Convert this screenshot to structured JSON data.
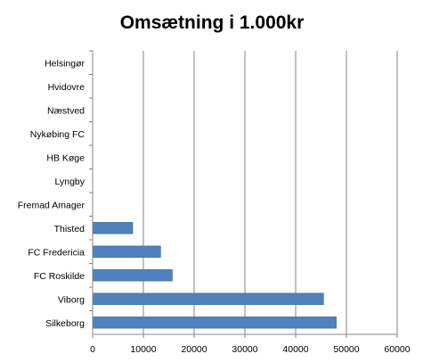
{
  "chart_data": {
    "type": "bar",
    "orientation": "horizontal",
    "title": "Omsætning i 1.000kr",
    "xlabel": "",
    "ylabel": "",
    "categories": [
      "Silkeborg",
      "Viborg",
      "FC Roskilde",
      "FC Fredericia",
      "Thisted",
      "Fremad Amager",
      "Lyngby",
      "HB Køge",
      "Nykøbing FC",
      "Næstved",
      "Hvidovre",
      "Helsingør"
    ],
    "values": [
      48000,
      45500,
      15700,
      13400,
      7900,
      null,
      null,
      null,
      null,
      null,
      null,
      null
    ],
    "xlim": [
      0,
      60000
    ],
    "xticks": [
      "0",
      "10000",
      "20000",
      "30000",
      "40000",
      "50000",
      "60000"
    ],
    "grid": true,
    "legend": "none",
    "colors": {
      "bar": "#4f81bd",
      "bar_edge": "#3b6696",
      "grid": "#868686",
      "axis": "#868686"
    }
  }
}
